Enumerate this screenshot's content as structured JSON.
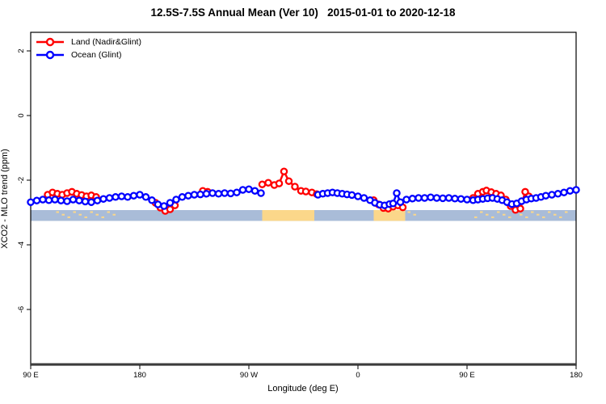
{
  "chart_data": {
    "type": "line",
    "title": "12.5S-7.5S Annual Mean (Ver 10)   2015-01-01 to 2020-12-18",
    "xlabel": "Longitude (deg E)",
    "ylabel": "XCO2 - MLO trend (ppm)",
    "x_axis": {
      "min": 90,
      "max": 540,
      "ticks": [
        {
          "value": 90,
          "label": "90 E"
        },
        {
          "value": 180,
          "label": "180"
        },
        {
          "value": 270,
          "label": "90 W"
        },
        {
          "value": 360,
          "label": "0"
        },
        {
          "value": 450,
          "label": "90 E"
        },
        {
          "value": 540,
          "label": "180"
        }
      ]
    },
    "y_axis": {
      "min": -7.725,
      "max": 2.575,
      "ticks": [
        {
          "value": 2,
          "label": "2"
        },
        {
          "value": 0,
          "label": "0"
        },
        {
          "value": -2,
          "label": "-2"
        },
        {
          "value": -4,
          "label": "-4"
        },
        {
          "value": -6,
          "label": "-6"
        }
      ]
    },
    "series": [
      {
        "name": "Land (Nadir&Glint)",
        "color": "#ff0000",
        "segments": [
          [
            [
              104,
              -2.45
            ],
            [
              108,
              -2.38
            ],
            [
              112,
              -2.42
            ],
            [
              116,
              -2.45
            ],
            [
              120,
              -2.4
            ],
            [
              124,
              -2.36
            ],
            [
              128,
              -2.42
            ],
            [
              132,
              -2.46
            ],
            [
              136,
              -2.5
            ],
            [
              140,
              -2.47
            ],
            [
              144,
              -2.52
            ]
          ],
          [
            [
              193,
              -2.7
            ],
            [
              197,
              -2.85
            ],
            [
              201,
              -2.95
            ],
            [
              205,
              -2.9
            ],
            [
              209,
              -2.78
            ]
          ],
          [
            [
              232,
              -2.33
            ],
            [
              236,
              -2.36
            ]
          ],
          [
            [
              281,
              -2.13
            ],
            [
              286,
              -2.08
            ],
            [
              291,
              -2.15
            ],
            [
              295,
              -2.1
            ],
            [
              299,
              -1.73
            ],
            [
              303,
              -2.03
            ],
            [
              308,
              -2.2
            ],
            [
              313,
              -2.33
            ],
            [
              317,
              -2.35
            ],
            [
              322,
              -2.38
            ],
            [
              326,
              -2.43
            ]
          ],
          [
            [
              373,
              -2.62
            ],
            [
              377,
              -2.75
            ],
            [
              381,
              -2.86
            ],
            [
              385,
              -2.88
            ],
            [
              389,
              -2.82
            ],
            [
              393,
              -2.78
            ],
            [
              397,
              -2.84
            ]
          ],
          [
            [
              455,
              -2.55
            ],
            [
              459,
              -2.42
            ],
            [
              463,
              -2.36
            ],
            [
              466,
              -2.32
            ],
            [
              470,
              -2.37
            ],
            [
              474,
              -2.42
            ],
            [
              478,
              -2.47
            ],
            [
              482,
              -2.6
            ],
            [
              486,
              -2.8
            ],
            [
              490,
              -2.92
            ],
            [
              494,
              -2.88
            ],
            [
              498,
              -2.36
            ],
            [
              501,
              -2.5
            ]
          ]
        ]
      },
      {
        "name": "Ocean (Glint)",
        "color": "#0000ff",
        "segments": [
          [
            [
              90,
              -2.68
            ],
            [
              95,
              -2.63
            ],
            [
              100,
              -2.6
            ],
            [
              105,
              -2.62
            ],
            [
              110,
              -2.6
            ],
            [
              115,
              -2.63
            ],
            [
              120,
              -2.65
            ],
            [
              125,
              -2.6
            ],
            [
              130,
              -2.63
            ],
            [
              135,
              -2.66
            ],
            [
              140,
              -2.68
            ],
            [
              145,
              -2.63
            ],
            [
              150,
              -2.58
            ],
            [
              155,
              -2.55
            ],
            [
              160,
              -2.52
            ],
            [
              165,
              -2.5
            ],
            [
              170,
              -2.52
            ],
            [
              175,
              -2.48
            ],
            [
              180,
              -2.45
            ],
            [
              185,
              -2.52
            ],
            [
              190,
              -2.62
            ],
            [
              195,
              -2.75
            ],
            [
              200,
              -2.8
            ],
            [
              205,
              -2.7
            ],
            [
              210,
              -2.6
            ],
            [
              215,
              -2.52
            ],
            [
              220,
              -2.48
            ],
            [
              225,
              -2.45
            ],
            [
              230,
              -2.44
            ],
            [
              235,
              -2.42
            ],
            [
              240,
              -2.4
            ],
            [
              245,
              -2.42
            ],
            [
              250,
              -2.4
            ],
            [
              255,
              -2.41
            ],
            [
              260,
              -2.38
            ],
            [
              265,
              -2.3
            ],
            [
              270,
              -2.28
            ],
            [
              275,
              -2.33
            ],
            [
              280,
              -2.4
            ]
          ],
          [
            [
              327,
              -2.45
            ],
            [
              331,
              -2.42
            ],
            [
              335,
              -2.4
            ],
            [
              339,
              -2.38
            ],
            [
              343,
              -2.4
            ],
            [
              347,
              -2.42
            ],
            [
              351,
              -2.44
            ],
            [
              355,
              -2.46
            ],
            [
              360,
              -2.5
            ],
            [
              365,
              -2.55
            ],
            [
              370,
              -2.62
            ],
            [
              374,
              -2.7
            ],
            [
              378,
              -2.76
            ],
            [
              382,
              -2.78
            ],
            [
              386,
              -2.74
            ],
            [
              389,
              -2.72
            ],
            [
              392,
              -2.4
            ],
            [
              395,
              -2.68
            ],
            [
              400,
              -2.6
            ],
            [
              405,
              -2.57
            ],
            [
              410,
              -2.55
            ],
            [
              415,
              -2.55
            ],
            [
              420,
              -2.53
            ],
            [
              425,
              -2.55
            ],
            [
              430,
              -2.56
            ],
            [
              435,
              -2.55
            ],
            [
              440,
              -2.57
            ],
            [
              445,
              -2.58
            ],
            [
              450,
              -2.6
            ],
            [
              455,
              -2.62
            ],
            [
              459,
              -2.6
            ],
            [
              463,
              -2.58
            ],
            [
              467,
              -2.56
            ],
            [
              471,
              -2.55
            ],
            [
              475,
              -2.58
            ],
            [
              479,
              -2.62
            ],
            [
              483,
              -2.68
            ],
            [
              487,
              -2.74
            ],
            [
              491,
              -2.72
            ],
            [
              495,
              -2.65
            ],
            [
              499,
              -2.6
            ],
            [
              503,
              -2.57
            ],
            [
              507,
              -2.55
            ],
            [
              511,
              -2.52
            ],
            [
              515,
              -2.48
            ],
            [
              520,
              -2.45
            ],
            [
              525,
              -2.42
            ],
            [
              530,
              -2.38
            ],
            [
              535,
              -2.33
            ],
            [
              540,
              -2.3
            ]
          ]
        ]
      }
    ],
    "map_strip": {
      "description": "latitude-band map: ocean vs land along longitude",
      "y_top": -2.925,
      "y_bottom": -3.26,
      "ocean_color": "#a9bcd8",
      "land_color": "#fbd78a",
      "ocean_span": [
        90,
        540
      ],
      "land_patches": [
        [
          281,
          324
        ],
        [
          373,
          399
        ]
      ],
      "speckle_patches": [
        [
          111,
          160
        ],
        [
          401,
          409
        ],
        [
          456,
          532
        ]
      ]
    },
    "layout_hints": {
      "grid": "off",
      "legend_position": "top-left-inside",
      "marker": "open-circle",
      "axis_color": "#000000"
    }
  }
}
